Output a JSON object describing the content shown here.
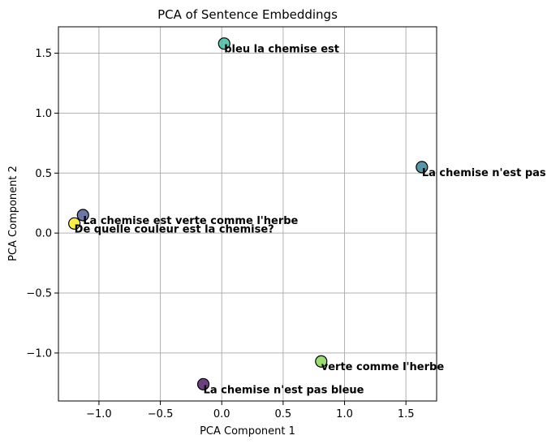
{
  "chart_data": {
    "type": "scatter",
    "title": "PCA of Sentence Embeddings",
    "xlabel": "PCA Component 1",
    "ylabel": "PCA Component 2",
    "xlim": [
      -1.33,
      1.75
    ],
    "ylim": [
      -1.4,
      1.72
    ],
    "xticks": [
      -1.0,
      -0.5,
      0.0,
      0.5,
      1.0,
      1.5
    ],
    "xtick_labels": [
      "−1.0",
      "−0.5",
      "0.0",
      "0.5",
      "1.0",
      "1.5"
    ],
    "yticks": [
      -1.0,
      -0.5,
      0.0,
      0.5,
      1.0,
      1.5
    ],
    "ytick_labels": [
      "−1.0",
      "−0.5",
      "0.0",
      "0.5",
      "1.0",
      "1.5"
    ],
    "grid": true,
    "points": [
      {
        "x": 0.02,
        "y": 1.58,
        "label": "bleu la chemise est",
        "color": "#3fb69c"
      },
      {
        "x": 1.63,
        "y": 0.55,
        "label": "La chemise n'est pas",
        "color": "#2e7b8f"
      },
      {
        "x": -1.13,
        "y": 0.15,
        "label": "La chemise est verte comme l'herbe",
        "color": "#4a5690"
      },
      {
        "x": -1.2,
        "y": 0.08,
        "label": "De quelle couleur est la chemise?",
        "color": "#fde725"
      },
      {
        "x": 0.81,
        "y": -1.07,
        "label": "verte comme l'herbe",
        "color": "#7fd34e"
      },
      {
        "x": -0.15,
        "y": -1.26,
        "label": "La chemise n'est pas bleue",
        "color": "#45105e"
      }
    ]
  }
}
